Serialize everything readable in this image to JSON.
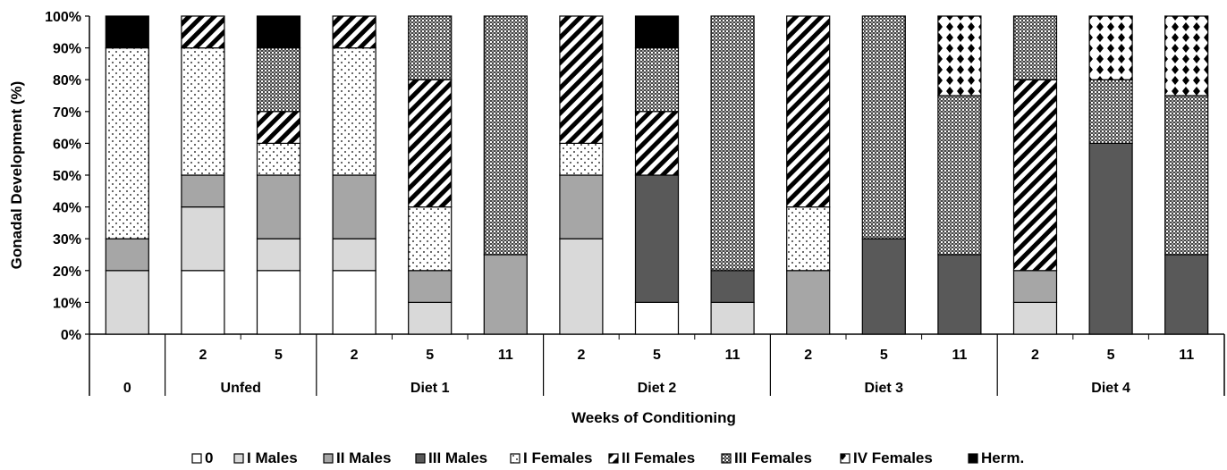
{
  "chart_data": {
    "type": "bar",
    "stacked": true,
    "ylabel": "Gonadal Development (%)",
    "xlabel": "Weeks of Conditioning",
    "ylim": [
      0,
      100
    ],
    "yticks": [
      "0%",
      "10%",
      "20%",
      "30%",
      "40%",
      "50%",
      "60%",
      "70%",
      "80%",
      "90%",
      "100%"
    ],
    "categories": [
      {
        "group": "0",
        "week": ""
      },
      {
        "group": "Unfed",
        "week": "2"
      },
      {
        "group": "Unfed",
        "week": "5"
      },
      {
        "group": "Diet 1",
        "week": "2"
      },
      {
        "group": "Diet 1",
        "week": "5"
      },
      {
        "group": "Diet 1",
        "week": "11"
      },
      {
        "group": "Diet 2",
        "week": "2"
      },
      {
        "group": "Diet 2",
        "week": "5"
      },
      {
        "group": "Diet 2",
        "week": "11"
      },
      {
        "group": "Diet 3",
        "week": "2"
      },
      {
        "group": "Diet 3",
        "week": "5"
      },
      {
        "group": "Diet 3",
        "week": "11"
      },
      {
        "group": "Diet 4",
        "week": "2"
      },
      {
        "group": "Diet 4",
        "week": "5"
      },
      {
        "group": "Diet 4",
        "week": "11"
      }
    ],
    "groups": [
      "0",
      "Unfed",
      "Diet 1",
      "Diet 2",
      "Diet 3",
      "Diet 4"
    ],
    "series": [
      {
        "name": "0",
        "pattern": "plain-white",
        "values": [
          0,
          20,
          20,
          20,
          0,
          0,
          0,
          10,
          0,
          0,
          0,
          0,
          0,
          0,
          0
        ]
      },
      {
        "name": "I Males",
        "pattern": "light-gray",
        "values": [
          20,
          20,
          10,
          10,
          10,
          0,
          30,
          0,
          10,
          0,
          0,
          0,
          10,
          0,
          0
        ]
      },
      {
        "name": "II Males",
        "pattern": "mid-gray",
        "values": [
          10,
          10,
          20,
          20,
          10,
          25,
          20,
          0,
          0,
          20,
          0,
          0,
          10,
          0,
          0
        ]
      },
      {
        "name": "III Males",
        "pattern": "dark-gray",
        "values": [
          0,
          0,
          0,
          0,
          0,
          0,
          0,
          40,
          10,
          0,
          30,
          25,
          0,
          60,
          25
        ]
      },
      {
        "name": "I Females",
        "pattern": "dots",
        "values": [
          60,
          40,
          10,
          40,
          20,
          0,
          10,
          0,
          0,
          20,
          0,
          0,
          0,
          0,
          0
        ]
      },
      {
        "name": "II Females",
        "pattern": "diagonal-stripes",
        "values": [
          0,
          10,
          10,
          10,
          40,
          0,
          40,
          20,
          0,
          60,
          0,
          0,
          60,
          0,
          0
        ]
      },
      {
        "name": "III Females",
        "pattern": "checker",
        "values": [
          0,
          0,
          20,
          0,
          20,
          75,
          0,
          20,
          80,
          0,
          70,
          50,
          20,
          20,
          50
        ]
      },
      {
        "name": "IV Females",
        "pattern": "diamonds",
        "values": [
          0,
          0,
          0,
          0,
          0,
          0,
          0,
          0,
          0,
          0,
          0,
          25,
          0,
          20,
          25
        ]
      },
      {
        "name": "Herm.",
        "pattern": "black",
        "values": [
          10,
          0,
          10,
          0,
          0,
          0,
          0,
          10,
          0,
          0,
          0,
          0,
          0,
          0,
          0
        ]
      }
    ],
    "legend_position": "bottom"
  }
}
